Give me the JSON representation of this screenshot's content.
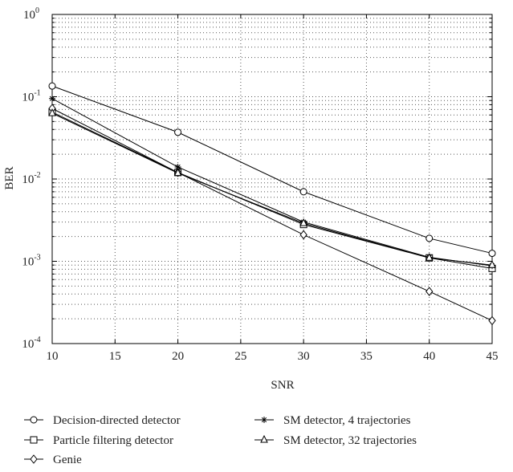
{
  "chart_data": {
    "type": "line",
    "title": "",
    "xlabel": "SNR",
    "ylabel": "BER",
    "x": [
      10,
      20,
      30,
      40,
      45
    ],
    "xlim": [
      10,
      45
    ],
    "ylim": [
      0.0001,
      1
    ],
    "yscale": "log",
    "grid": true,
    "legend_position": "bottom",
    "xticks": [
      "10",
      "15",
      "20",
      "25",
      "30",
      "35",
      "40",
      "45"
    ],
    "yticks": [
      {
        "base": "10",
        "exp": "-4",
        "value": 0.0001
      },
      {
        "base": "10",
        "exp": "-3",
        "value": 0.001
      },
      {
        "base": "10",
        "exp": "-2",
        "value": 0.01
      },
      {
        "base": "10",
        "exp": "-1",
        "value": 0.1
      },
      {
        "base": "10",
        "exp": "0",
        "value": 1
      }
    ],
    "series": [
      {
        "name": "Decision-directed detector",
        "marker": "circle",
        "values": [
          0.135,
          0.037,
          0.007,
          0.0019,
          0.00125
        ]
      },
      {
        "name": "Particle filtering detector",
        "marker": "square",
        "values": [
          0.065,
          0.012,
          0.0028,
          0.0011,
          0.00082
        ]
      },
      {
        "name": "Genie",
        "marker": "diamond",
        "values": [
          0.072,
          0.012,
          0.0021,
          0.00043,
          0.00019
        ]
      },
      {
        "name": "SM detector, 4 trajectories",
        "marker": "star",
        "values": [
          0.095,
          0.014,
          0.003,
          0.00112,
          0.00088
        ]
      },
      {
        "name": "SM detector, 32 trajectories",
        "marker": "triangle",
        "values": [
          0.063,
          0.0118,
          0.0029,
          0.0011,
          0.0009
        ]
      }
    ],
    "colors": {
      "line": "#000000",
      "grid": "#555555",
      "text": "#222222"
    }
  }
}
